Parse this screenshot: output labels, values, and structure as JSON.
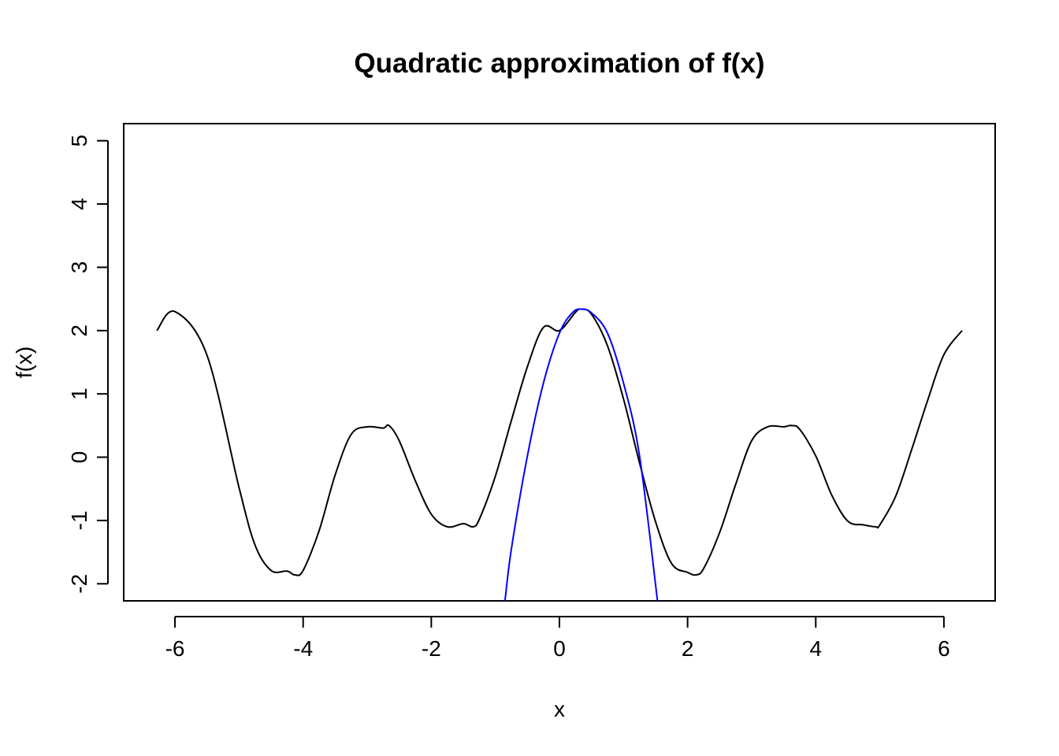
{
  "chart_data": {
    "type": "line",
    "title": "Quadratic approximation of f(x)",
    "xlabel": "x",
    "ylabel": "f(x)",
    "xlim": [
      -6.8,
      6.8
    ],
    "ylim": [
      -2.27,
      5.27
    ],
    "x_ticks": [
      -6,
      -4,
      -2,
      0,
      2,
      4,
      6
    ],
    "x_tick_labels": [
      "-6",
      "-4",
      "-2",
      "0",
      "2",
      "4",
      "6"
    ],
    "y_ticks": [
      -2,
      -1,
      0,
      1,
      2,
      3,
      4,
      5
    ],
    "y_tick_labels": [
      "-2",
      "-1",
      "0",
      "1",
      "2",
      "3",
      "4",
      "5"
    ],
    "grid": false,
    "legend": "none",
    "series": [
      {
        "name": "f(x)",
        "color": "#000000",
        "x": [
          -6.283,
          -6.0,
          -5.5,
          -5.0,
          -4.75,
          -4.5,
          -4.25,
          -4.13,
          -4.0,
          -3.75,
          -3.5,
          -3.25,
          -3.0,
          -2.75,
          -2.66,
          -2.5,
          -2.25,
          -2.0,
          -1.75,
          -1.5,
          -1.35,
          -1.25,
          -1.0,
          -0.75,
          -0.5,
          -0.25,
          0.0,
          0.25,
          0.34,
          0.5,
          0.75,
          1.0,
          1.25,
          1.5,
          1.75,
          2.0,
          2.13,
          2.25,
          2.5,
          2.75,
          3.0,
          3.25,
          3.5,
          3.62,
          3.75,
          4.0,
          4.25,
          4.5,
          4.75,
          4.94,
          5.0,
          5.25,
          5.5,
          5.75,
          6.0,
          6.283
        ],
        "y": [
          2.0,
          2.3,
          1.61,
          -0.48,
          -1.39,
          -1.79,
          -1.8,
          -1.86,
          -1.79,
          -1.16,
          -0.28,
          0.36,
          0.48,
          0.46,
          0.5,
          0.26,
          -0.37,
          -0.9,
          -1.1,
          -1.05,
          -1.1,
          -0.98,
          -0.3,
          0.58,
          1.43,
          2.05,
          2.0,
          2.29,
          2.34,
          2.26,
          1.76,
          0.92,
          -0.09,
          -1.02,
          -1.68,
          -1.82,
          -1.86,
          -1.76,
          -1.19,
          -0.43,
          0.26,
          0.48,
          0.48,
          0.5,
          0.44,
          0.02,
          -0.6,
          -1.01,
          -1.07,
          -1.1,
          -1.07,
          -0.61,
          0.13,
          0.91,
          1.62,
          2.0
        ]
      },
      {
        "name": "quadratic approximation",
        "color": "#0000ff",
        "x": [
          -0.85,
          -0.75,
          -0.5,
          -0.25,
          0.0,
          0.2,
          0.34,
          0.5,
          0.75,
          1.0,
          1.25,
          1.53
        ],
        "y": [
          -2.27,
          -1.45,
          0.02,
          1.17,
          1.96,
          2.28,
          2.34,
          2.28,
          1.96,
          1.17,
          0.02,
          -2.27
        ]
      }
    ]
  }
}
